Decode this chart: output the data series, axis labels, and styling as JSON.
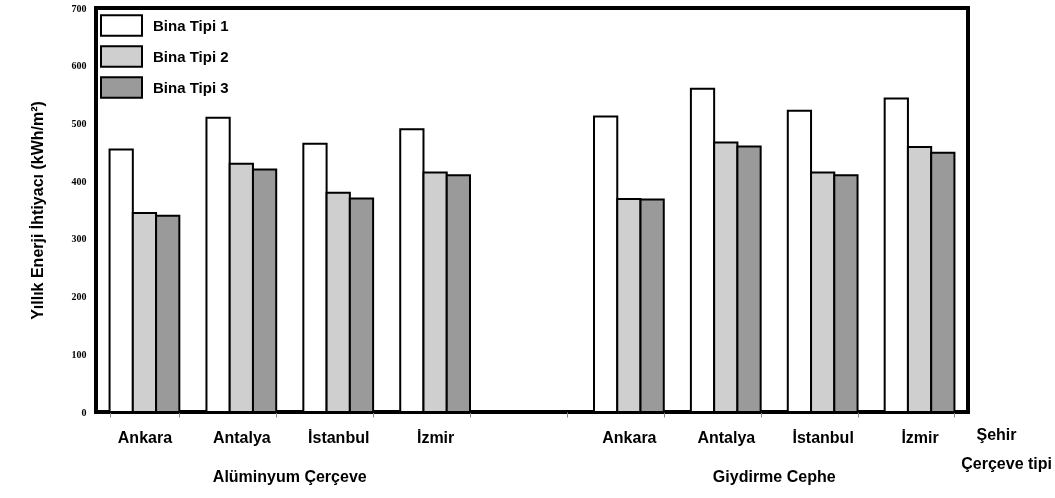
{
  "chart_data": {
    "type": "bar",
    "categories": [
      "Ankara",
      "Antalya",
      "İstanbul",
      "İzmir",
      null,
      "Ankara",
      "Antalya",
      "İstanbul",
      "İzmir"
    ],
    "series": [
      {
        "name": "Bina Tipi 1",
        "color": "#ffffff",
        "values": [
          455,
          510,
          465,
          490,
          null,
          512,
          560,
          522,
          543
        ]
      },
      {
        "name": "Bina Tipi 2",
        "color": "#cfcfcf",
        "values": [
          345,
          430,
          380,
          415,
          null,
          369,
          467,
          415,
          459
        ]
      },
      {
        "name": "Bina Tipi 3",
        "color": "#9a9a9a",
        "values": [
          340,
          420,
          370,
          410,
          null,
          368,
          460,
          410,
          449
        ]
      }
    ],
    "xlabel": "Şehir",
    "ylabel": "Yıllık Enerji İhtiyacı (kWh/m²)",
    "ylim": [
      0,
      700
    ],
    "yticks": [
      0,
      100,
      200,
      300,
      400,
      500,
      600,
      700
    ],
    "grid": false,
    "legend": "top left",
    "annotations": [
      "Alüminyum Çerçeve",
      "Giydirme Cephe",
      "Çerçeve tipi"
    ]
  }
}
